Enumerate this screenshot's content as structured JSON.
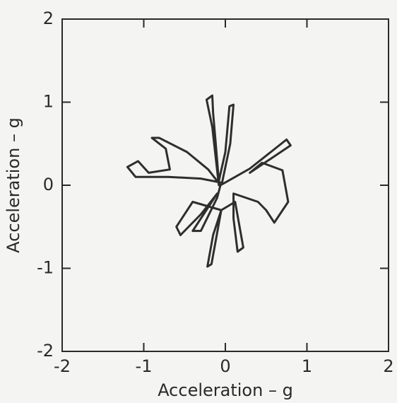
{
  "chart_data": {
    "type": "line",
    "xlabel": "Acceleration – g",
    "ylabel": "Acceleration – g",
    "xlim": [
      -2,
      2
    ],
    "ylim": [
      -2,
      2
    ],
    "xticks": [
      -2,
      -1,
      0,
      1,
      2
    ],
    "yticks": [
      -2,
      -1,
      0,
      1,
      2
    ],
    "grid": false,
    "series": [
      {
        "color": "#2e2e2e",
        "x": [
          -0.08,
          -0.16,
          -0.23,
          -0.16,
          -0.15,
          -0.12,
          -0.08,
          0.0,
          0.05,
          0.1,
          0.06,
          -0.04,
          -0.3,
          -0.7,
          -1.1,
          -1.2,
          -1.07,
          -0.94,
          -0.68,
          -0.73,
          -0.9,
          -0.81,
          -0.47,
          -0.21,
          -0.06,
          0.3,
          0.75,
          0.8,
          0.3,
          0.45,
          0.7,
          0.77,
          0.6,
          0.5,
          0.4,
          0.1,
          0.1,
          0.15,
          0.22,
          0.12,
          -0.05,
          -0.15,
          -0.22,
          -0.17,
          -0.05,
          -0.4,
          -0.6,
          -0.55,
          -0.3,
          -0.1,
          -0.3,
          -0.4,
          -0.3,
          -0.1,
          -0.06
        ],
        "y": [
          0.0,
          0.7,
          1.03,
          1.08,
          0.87,
          0.53,
          0.05,
          0.4,
          0.95,
          0.97,
          0.5,
          0.03,
          0.08,
          0.1,
          0.1,
          0.22,
          0.29,
          0.15,
          0.19,
          0.44,
          0.57,
          0.57,
          0.4,
          0.19,
          0.0,
          0.2,
          0.55,
          0.48,
          0.15,
          0.27,
          0.18,
          -0.2,
          -0.45,
          -0.3,
          -0.2,
          -0.1,
          -0.4,
          -0.8,
          -0.75,
          -0.2,
          -0.3,
          -0.6,
          -0.98,
          -0.95,
          -0.3,
          -0.2,
          -0.5,
          -0.6,
          -0.35,
          -0.1,
          -0.4,
          -0.55,
          -0.55,
          -0.15,
          0.0
        ]
      }
    ]
  }
}
